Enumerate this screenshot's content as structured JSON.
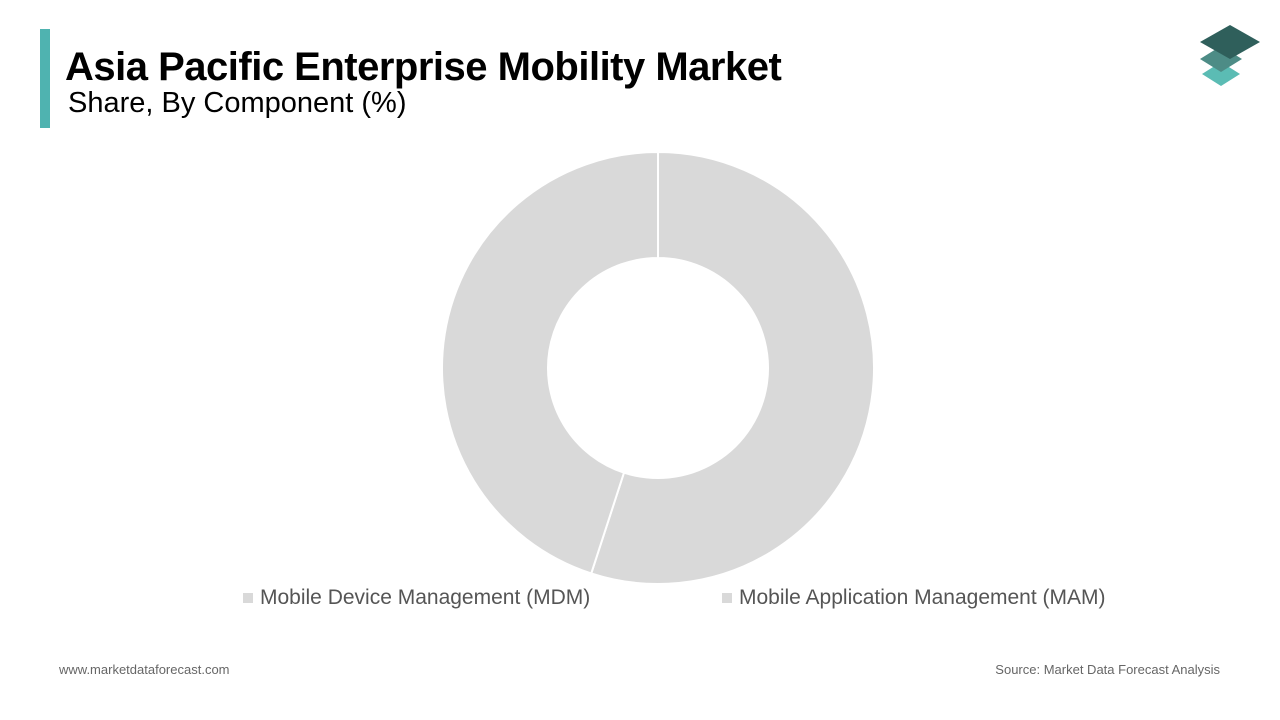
{
  "header": {
    "title": "Asia Pacific Enterprise Mobility Market",
    "subtitle": "Share, By Component (%)"
  },
  "colors": {
    "accent": "#4fb3b0",
    "slice": "#d9d9d9",
    "logo_top": "#2f5f5b",
    "logo_mid": "#4d8c86",
    "logo_bottom": "#5bbcb4"
  },
  "chart_data": {
    "type": "pie",
    "title": "Asia Pacific Enterprise Mobility Market",
    "subtitle": "Share, By Component (%)",
    "categories": [
      "Mobile Device Management (MDM)",
      "Mobile Application Management (MAM)"
    ],
    "values": [
      55,
      45
    ],
    "legend_position": "bottom",
    "donut": true
  },
  "legend": {
    "items": [
      {
        "label": "Mobile Device Management (MDM)"
      },
      {
        "label": "Mobile Application Management (MAM)"
      }
    ]
  },
  "footer": {
    "website": "www.marketdataforecast.com",
    "source": "Source: Market Data Forecast Analysis"
  }
}
